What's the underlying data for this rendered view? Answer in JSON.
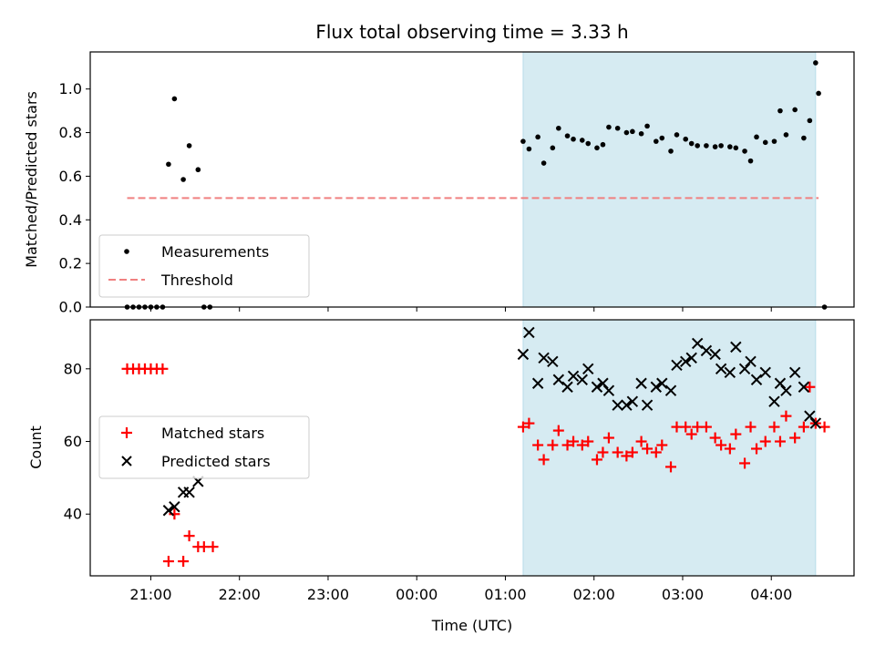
{
  "chart_data": [
    {
      "type": "scatter",
      "title": "Flux total observing time = 3.33 h",
      "xlabel": "",
      "ylabel": "Matched/Predicted stars",
      "ylim": [
        0,
        1.17
      ],
      "yticks": [
        "0.0",
        "0.2",
        "0.4",
        "0.6",
        "0.8",
        "1.0"
      ],
      "xlim": [
        "20:19",
        "04:56"
      ],
      "shaded_region": {
        "start": "01:12",
        "end": "04:30",
        "color": "#add8e6"
      },
      "threshold": {
        "value": 0.5,
        "start": "20:44",
        "end": "04:32",
        "color": "#f08080",
        "style": "dashed"
      },
      "legend": {
        "position": "lower-left",
        "entries": [
          {
            "label": "Measurements",
            "marker": "dot",
            "color": "#000000"
          },
          {
            "label": "Threshold",
            "marker": "dashed-line",
            "color": "#f08080"
          }
        ]
      },
      "series": [
        {
          "name": "Measurements",
          "color": "#000000",
          "points": [
            {
              "x": "20:44",
              "y": 0
            },
            {
              "x": "20:48",
              "y": 0
            },
            {
              "x": "20:52",
              "y": 0
            },
            {
              "x": "20:56",
              "y": 0
            },
            {
              "x": "21:00",
              "y": 0
            },
            {
              "x": "21:04",
              "y": 0
            },
            {
              "x": "21:08",
              "y": 0
            },
            {
              "x": "21:12",
              "y": 0.655
            },
            {
              "x": "21:16",
              "y": 0.955
            },
            {
              "x": "21:22",
              "y": 0.585
            },
            {
              "x": "21:26",
              "y": 0.74
            },
            {
              "x": "21:32",
              "y": 0.63
            },
            {
              "x": "21:36",
              "y": 0
            },
            {
              "x": "21:40",
              "y": 0
            },
            {
              "x": "01:12",
              "y": 0.76
            },
            {
              "x": "01:16",
              "y": 0.725
            },
            {
              "x": "01:22",
              "y": 0.78
            },
            {
              "x": "01:26",
              "y": 0.66
            },
            {
              "x": "01:32",
              "y": 0.73
            },
            {
              "x": "01:36",
              "y": 0.82
            },
            {
              "x": "01:42",
              "y": 0.785
            },
            {
              "x": "01:46",
              "y": 0.77
            },
            {
              "x": "01:52",
              "y": 0.765
            },
            {
              "x": "01:56",
              "y": 0.75
            },
            {
              "x": "02:02",
              "y": 0.73
            },
            {
              "x": "02:06",
              "y": 0.745
            },
            {
              "x": "02:10",
              "y": 0.825
            },
            {
              "x": "02:16",
              "y": 0.82
            },
            {
              "x": "02:22",
              "y": 0.8
            },
            {
              "x": "02:26",
              "y": 0.805
            },
            {
              "x": "02:32",
              "y": 0.795
            },
            {
              "x": "02:36",
              "y": 0.83
            },
            {
              "x": "02:42",
              "y": 0.76
            },
            {
              "x": "02:46",
              "y": 0.775
            },
            {
              "x": "02:52",
              "y": 0.715
            },
            {
              "x": "02:56",
              "y": 0.79
            },
            {
              "x": "03:02",
              "y": 0.77
            },
            {
              "x": "03:06",
              "y": 0.75
            },
            {
              "x": "03:10",
              "y": 0.74
            },
            {
              "x": "03:16",
              "y": 0.74
            },
            {
              "x": "03:22",
              "y": 0.735
            },
            {
              "x": "03:26",
              "y": 0.74
            },
            {
              "x": "03:32",
              "y": 0.735
            },
            {
              "x": "03:36",
              "y": 0.73
            },
            {
              "x": "03:42",
              "y": 0.715
            },
            {
              "x": "03:46",
              "y": 0.67
            },
            {
              "x": "03:50",
              "y": 0.78
            },
            {
              "x": "03:56",
              "y": 0.755
            },
            {
              "x": "04:02",
              "y": 0.76
            },
            {
              "x": "04:06",
              "y": 0.9
            },
            {
              "x": "04:10",
              "y": 0.79
            },
            {
              "x": "04:16",
              "y": 0.905
            },
            {
              "x": "04:22",
              "y": 0.775
            },
            {
              "x": "04:26",
              "y": 0.855
            },
            {
              "x": "04:30",
              "y": 1.12
            },
            {
              "x": "04:32",
              "y": 0.98
            },
            {
              "x": "04:36",
              "y": 0
            }
          ]
        }
      ]
    },
    {
      "type": "scatter",
      "title": "",
      "xlabel": "Time (UTC)",
      "ylabel": "Count",
      "ylim": [
        23,
        93.5
      ],
      "yticks": [
        "40",
        "60",
        "80"
      ],
      "xlim": [
        "20:19",
        "04:56"
      ],
      "xticks": [
        "21:00",
        "22:00",
        "23:00",
        "00:00",
        "01:00",
        "02:00",
        "03:00",
        "04:00"
      ],
      "shaded_region": {
        "start": "01:12",
        "end": "04:30",
        "color": "#add8e6"
      },
      "legend": {
        "position": "center-left",
        "entries": [
          {
            "label": "Matched stars",
            "marker": "plus",
            "color": "#ff0000"
          },
          {
            "label": "Predicted stars",
            "marker": "x",
            "color": "#000000"
          }
        ]
      },
      "series": [
        {
          "name": "Matched stars",
          "color": "#ff0000",
          "marker": "plus",
          "points": [
            {
              "x": "20:44",
              "y": 80
            },
            {
              "x": "20:48",
              "y": 80
            },
            {
              "x": "20:52",
              "y": 80
            },
            {
              "x": "20:56",
              "y": 80
            },
            {
              "x": "21:00",
              "y": 80
            },
            {
              "x": "21:04",
              "y": 80
            },
            {
              "x": "21:08",
              "y": 80
            },
            {
              "x": "21:12",
              "y": 27
            },
            {
              "x": "21:16",
              "y": 40
            },
            {
              "x": "21:22",
              "y": 27
            },
            {
              "x": "21:26",
              "y": 34
            },
            {
              "x": "21:32",
              "y": 31
            },
            {
              "x": "21:36",
              "y": 31
            },
            {
              "x": "21:42",
              "y": 31
            },
            {
              "x": "01:12",
              "y": 64
            },
            {
              "x": "01:16",
              "y": 65
            },
            {
              "x": "01:22",
              "y": 59
            },
            {
              "x": "01:26",
              "y": 55
            },
            {
              "x": "01:32",
              "y": 59
            },
            {
              "x": "01:36",
              "y": 63
            },
            {
              "x": "01:42",
              "y": 59
            },
            {
              "x": "01:46",
              "y": 60
            },
            {
              "x": "01:52",
              "y": 59
            },
            {
              "x": "01:56",
              "y": 60
            },
            {
              "x": "02:02",
              "y": 55
            },
            {
              "x": "02:06",
              "y": 57
            },
            {
              "x": "02:10",
              "y": 61
            },
            {
              "x": "02:16",
              "y": 57
            },
            {
              "x": "02:22",
              "y": 56
            },
            {
              "x": "02:26",
              "y": 57
            },
            {
              "x": "02:32",
              "y": 60
            },
            {
              "x": "02:36",
              "y": 58
            },
            {
              "x": "02:42",
              "y": 57
            },
            {
              "x": "02:46",
              "y": 59
            },
            {
              "x": "02:52",
              "y": 53
            },
            {
              "x": "02:56",
              "y": 64
            },
            {
              "x": "03:02",
              "y": 64
            },
            {
              "x": "03:06",
              "y": 62
            },
            {
              "x": "03:10",
              "y": 64
            },
            {
              "x": "03:16",
              "y": 64
            },
            {
              "x": "03:22",
              "y": 61
            },
            {
              "x": "03:26",
              "y": 59
            },
            {
              "x": "03:32",
              "y": 58
            },
            {
              "x": "03:36",
              "y": 62
            },
            {
              "x": "03:42",
              "y": 54
            },
            {
              "x": "03:46",
              "y": 64
            },
            {
              "x": "03:50",
              "y": 58
            },
            {
              "x": "03:56",
              "y": 60
            },
            {
              "x": "04:02",
              "y": 64
            },
            {
              "x": "04:06",
              "y": 60
            },
            {
              "x": "04:10",
              "y": 67
            },
            {
              "x": "04:16",
              "y": 61
            },
            {
              "x": "04:22",
              "y": 64
            },
            {
              "x": "04:26",
              "y": 75
            },
            {
              "x": "04:30",
              "y": 65
            },
            {
              "x": "04:36",
              "y": 64
            }
          ]
        },
        {
          "name": "Predicted stars",
          "color": "#000000",
          "marker": "x",
          "points": [
            {
              "x": "21:12",
              "y": 41
            },
            {
              "x": "21:16",
              "y": 42
            },
            {
              "x": "21:22",
              "y": 46
            },
            {
              "x": "21:26",
              "y": 46
            },
            {
              "x": "21:32",
              "y": 49
            },
            {
              "x": "01:12",
              "y": 84
            },
            {
              "x": "01:16",
              "y": 90
            },
            {
              "x": "01:22",
              "y": 76
            },
            {
              "x": "01:26",
              "y": 83
            },
            {
              "x": "01:32",
              "y": 82
            },
            {
              "x": "01:36",
              "y": 77
            },
            {
              "x": "01:42",
              "y": 75
            },
            {
              "x": "01:46",
              "y": 78
            },
            {
              "x": "01:52",
              "y": 77
            },
            {
              "x": "01:56",
              "y": 80
            },
            {
              "x": "02:02",
              "y": 75
            },
            {
              "x": "02:06",
              "y": 76
            },
            {
              "x": "02:10",
              "y": 74
            },
            {
              "x": "02:16",
              "y": 70
            },
            {
              "x": "02:22",
              "y": 70
            },
            {
              "x": "02:26",
              "y": 71
            },
            {
              "x": "02:32",
              "y": 76
            },
            {
              "x": "02:36",
              "y": 70
            },
            {
              "x": "02:42",
              "y": 75
            },
            {
              "x": "02:46",
              "y": 76
            },
            {
              "x": "02:52",
              "y": 74
            },
            {
              "x": "02:56",
              "y": 81
            },
            {
              "x": "03:02",
              "y": 82
            },
            {
              "x": "03:06",
              "y": 83
            },
            {
              "x": "03:10",
              "y": 87
            },
            {
              "x": "03:16",
              "y": 85
            },
            {
              "x": "03:22",
              "y": 84
            },
            {
              "x": "03:26",
              "y": 80
            },
            {
              "x": "03:32",
              "y": 79
            },
            {
              "x": "03:36",
              "y": 86
            },
            {
              "x": "03:42",
              "y": 80
            },
            {
              "x": "03:46",
              "y": 82
            },
            {
              "x": "03:50",
              "y": 77
            },
            {
              "x": "03:56",
              "y": 79
            },
            {
              "x": "04:02",
              "y": 71
            },
            {
              "x": "04:06",
              "y": 76
            },
            {
              "x": "04:10",
              "y": 74
            },
            {
              "x": "04:16",
              "y": 79
            },
            {
              "x": "04:22",
              "y": 75
            },
            {
              "x": "04:26",
              "y": 67
            },
            {
              "x": "04:30",
              "y": 65
            }
          ]
        }
      ]
    }
  ]
}
